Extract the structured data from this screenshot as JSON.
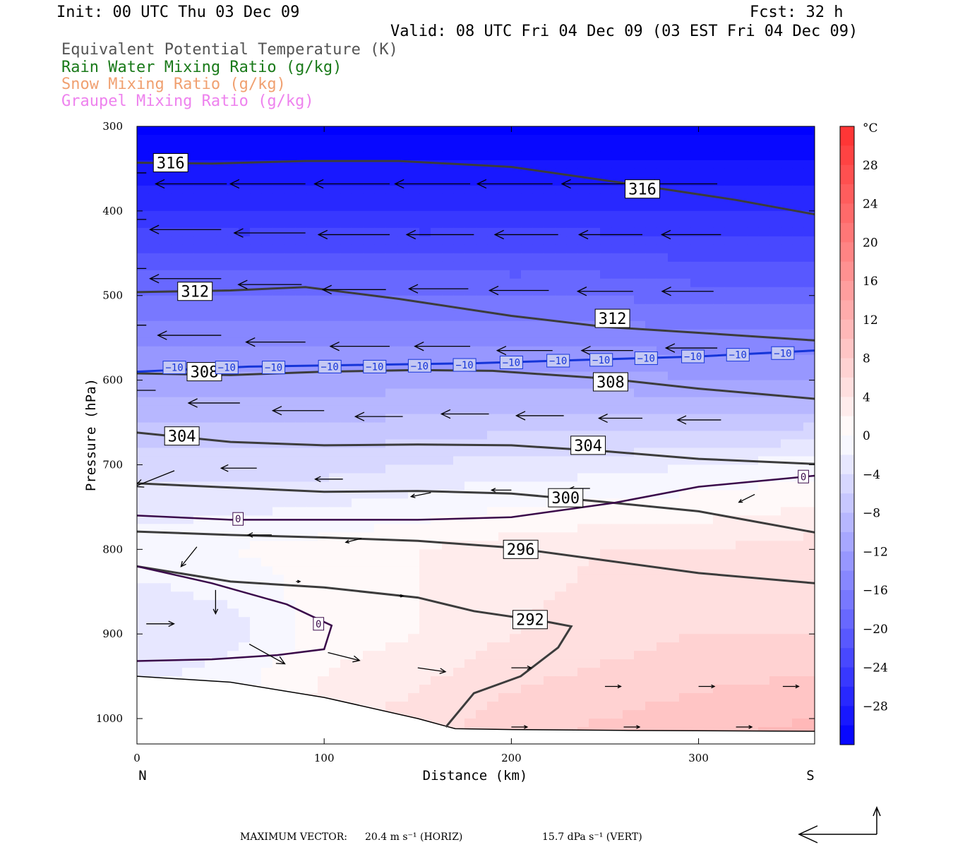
{
  "header": {
    "init": "Init: 00 UTC Thu 03 Dec 09",
    "fcst": "Fcst:   32 h",
    "valid": "Valid: 08 UTC Fri 04 Dec 09 (03 EST Fri 04 Dec 09)"
  },
  "legend": [
    {
      "label": "Equivalent Potential Temperature (K)",
      "color": "#555555"
    },
    {
      "label": "Rain Water Mixing Ratio (g/kg)",
      "color": "#1a7a1a"
    },
    {
      "label": "Snow Mixing Ratio (g/kg)",
      "color": "#f0a070"
    },
    {
      "label": "Graupel Mixing Ratio (g/kg)",
      "color": "#ee82ee"
    }
  ],
  "footer": {
    "prefix": "MAXIMUM VECTOR:",
    "horiz": "20.4 m s⁻¹ (HORIZ)",
    "vert": "15.7 dPa s⁻¹ (VERT)"
  },
  "chart_data": {
    "type": "heatmap",
    "title": "",
    "xlabel": "Distance (km)",
    "ylabel": "Pressure (hPa)",
    "x_ticks": [
      0,
      100,
      200,
      300
    ],
    "y_ticks": [
      300,
      400,
      500,
      600,
      700,
      800,
      900,
      1000
    ],
    "xlim": [
      0,
      362
    ],
    "ylim": [
      300,
      1030
    ],
    "y_inverted": true,
    "end_labels": {
      "left": "N",
      "right": "S"
    },
    "colorbar": {
      "unit": "°C",
      "ticks": [
        28,
        24,
        20,
        16,
        12,
        8,
        4,
        0,
        -4,
        -8,
        -12,
        -16,
        -20,
        -24,
        -28
      ],
      "range": [
        -32,
        32
      ],
      "cold_color": "#0000ff",
      "warm_color": "#ff3030"
    },
    "temperature_field": {
      "x_km": [
        0,
        50,
        100,
        150,
        200,
        250,
        300,
        362
      ],
      "p_hPa": [
        300,
        400,
        500,
        600,
        700,
        800,
        900,
        1000,
        1030
      ],
      "values_C": [
        [
          -33,
          -33,
          -33,
          -33,
          -33,
          -33,
          -33,
          -33
        ],
        [
          -26,
          -26,
          -26,
          -26,
          -26,
          -26,
          -26,
          -26
        ],
        [
          -18,
          -18,
          -18,
          -18,
          -18,
          -18,
          -19,
          -19
        ],
        [
          -11,
          -11,
          -11,
          -11,
          -11,
          -11,
          -12,
          -12
        ],
        [
          -5,
          -5,
          -5,
          -4,
          -3,
          -3,
          -2,
          -1
        ],
        [
          -1,
          0,
          1,
          2,
          3,
          4,
          4,
          5
        ],
        [
          -4,
          -3,
          1,
          2,
          4,
          5,
          6,
          6
        ],
        [
          -1,
          1,
          3,
          5,
          7,
          8,
          9,
          10
        ],
        [
          0,
          1,
          3,
          5,
          7,
          9,
          10,
          11
        ]
      ]
    },
    "theta_e_contours": [
      {
        "level": 316,
        "points": [
          [
            0,
            343
          ],
          [
            40,
            344
          ],
          [
            90,
            341
          ],
          [
            140,
            341
          ],
          [
            200,
            348
          ],
          [
            260,
            367
          ],
          [
            320,
            387
          ],
          [
            362,
            404
          ]
        ]
      },
      {
        "level": 312,
        "points": [
          [
            0,
            496
          ],
          [
            50,
            494
          ],
          [
            90,
            490
          ],
          [
            140,
            504
          ],
          [
            200,
            524
          ],
          [
            250,
            537
          ],
          [
            300,
            544
          ],
          [
            362,
            553
          ]
        ]
      },
      {
        "level": 308,
        "points": [
          [
            0,
            592
          ],
          [
            50,
            594
          ],
          [
            100,
            590
          ],
          [
            150,
            588
          ],
          [
            190,
            589
          ],
          [
            250,
            598
          ],
          [
            300,
            610
          ],
          [
            362,
            622
          ]
        ]
      },
      {
        "level": 304,
        "points": [
          [
            0,
            662
          ],
          [
            50,
            673
          ],
          [
            100,
            677
          ],
          [
            150,
            676
          ],
          [
            200,
            677
          ],
          [
            250,
            684
          ],
          [
            300,
            693
          ],
          [
            362,
            699
          ]
        ]
      },
      {
        "level": 300,
        "points": [
          [
            0,
            722
          ],
          [
            50,
            727
          ],
          [
            100,
            732
          ],
          [
            150,
            731
          ],
          [
            200,
            734
          ],
          [
            250,
            744
          ],
          [
            300,
            755
          ],
          [
            362,
            780
          ]
        ]
      },
      {
        "level": 296,
        "points": [
          [
            0,
            779
          ],
          [
            50,
            783
          ],
          [
            100,
            786
          ],
          [
            150,
            790
          ],
          [
            200,
            798
          ],
          [
            250,
            813
          ],
          [
            300,
            828
          ],
          [
            362,
            840
          ]
        ]
      },
      {
        "level": 292,
        "points": [
          [
            0,
            820
          ],
          [
            50,
            838
          ],
          [
            100,
            845
          ],
          [
            150,
            857
          ],
          [
            180,
            873
          ],
          [
            220,
            886
          ],
          [
            232,
            891
          ],
          [
            225,
            916
          ],
          [
            205,
            950
          ],
          [
            180,
            970
          ],
          [
            165,
            1010
          ]
        ]
      }
    ],
    "zero_isotherms": [
      {
        "points": [
          [
            0,
            760
          ],
          [
            50,
            765
          ],
          [
            100,
            765
          ],
          [
            150,
            765
          ],
          [
            200,
            762
          ],
          [
            255,
            745
          ],
          [
            300,
            726
          ],
          [
            362,
            713
          ]
        ]
      },
      {
        "points": [
          [
            0,
            820
          ],
          [
            40,
            840
          ],
          [
            80,
            865
          ],
          [
            104,
            890
          ],
          [
            100,
            918
          ],
          [
            75,
            925
          ],
          [
            40,
            930
          ],
          [
            0,
            932
          ]
        ]
      }
    ],
    "minus10_isotherm": {
      "points": [
        [
          0,
          590
        ],
        [
          60,
          584
        ],
        [
          120,
          582
        ],
        [
          180,
          580
        ],
        [
          240,
          576
        ],
        [
          300,
          572
        ],
        [
          362,
          565
        ]
      ]
    },
    "terrain": {
      "points": [
        [
          0,
          950
        ],
        [
          50,
          957
        ],
        [
          100,
          975
        ],
        [
          150,
          1000
        ],
        [
          170,
          1012
        ],
        [
          200,
          1013
        ],
        [
          260,
          1014
        ],
        [
          362,
          1015
        ]
      ]
    },
    "contour_labels": [
      {
        "text": "316",
        "x": 18,
        "p": 343
      },
      {
        "text": "316",
        "x": 270,
        "p": 374
      },
      {
        "text": "312",
        "x": 31,
        "p": 495
      },
      {
        "text": "312",
        "x": 254,
        "p": 527
      },
      {
        "text": "308",
        "x": 36,
        "p": 590
      },
      {
        "text": "308",
        "x": 253,
        "p": 602
      },
      {
        "text": "304",
        "x": 24,
        "p": 666
      },
      {
        "text": "304",
        "x": 241,
        "p": 677
      },
      {
        "text": "300",
        "x": 229,
        "p": 739
      },
      {
        "text": "296",
        "x": 205,
        "p": 800
      },
      {
        "text": "292",
        "x": 210,
        "p": 883
      }
    ],
    "isotherm_labels": [
      {
        "text": "0",
        "x": 54,
        "p": 764
      },
      {
        "text": "0",
        "x": 97,
        "p": 888
      },
      {
        "text": "0",
        "x": 356,
        "p": 714
      }
    ],
    "minus10_labels": [
      {
        "text": "−10",
        "x": 20,
        "p": 585
      },
      {
        "text": "−10",
        "x": 48,
        "p": 585
      },
      {
        "text": "−10",
        "x": 73,
        "p": 585
      },
      {
        "text": "−10",
        "x": 103,
        "p": 584
      },
      {
        "text": "−10",
        "x": 127,
        "p": 584
      },
      {
        "text": "−10",
        "x": 151,
        "p": 583
      },
      {
        "text": "−10",
        "x": 175,
        "p": 582
      },
      {
        "text": "−10",
        "x": 200,
        "p": 579
      },
      {
        "text": "−10",
        "x": 225,
        "p": 577
      },
      {
        "text": "−10",
        "x": 248,
        "p": 576
      },
      {
        "text": "−10",
        "x": 272,
        "p": 574
      },
      {
        "text": "−10",
        "x": 297,
        "p": 572
      },
      {
        "text": "−10",
        "x": 321,
        "p": 570
      },
      {
        "text": "−10",
        "x": 345,
        "p": 568
      }
    ],
    "wind_vectors": [
      {
        "x": 5,
        "p": 355,
        "u": -18,
        "w": 0
      },
      {
        "x": 48,
        "p": 368,
        "u": -18,
        "w": 0
      },
      {
        "x": 90,
        "p": 368,
        "u": -19,
        "w": 0
      },
      {
        "x": 135,
        "p": 368,
        "u": -19,
        "w": 0
      },
      {
        "x": 178,
        "p": 368,
        "u": -19,
        "w": 0
      },
      {
        "x": 222,
        "p": 368,
        "u": -19,
        "w": 0
      },
      {
        "x": 265,
        "p": 368,
        "u": -18,
        "w": 0
      },
      {
        "x": 310,
        "p": 368,
        "u": -18,
        "w": 0
      },
      {
        "x": 5,
        "p": 410,
        "u": -18,
        "w": 0
      },
      {
        "x": 45,
        "p": 422,
        "u": -18,
        "w": 0
      },
      {
        "x": 90,
        "p": 426,
        "u": -18,
        "w": 0
      },
      {
        "x": 135,
        "p": 428,
        "u": -18,
        "w": 0
      },
      {
        "x": 180,
        "p": 428,
        "u": -17,
        "w": 0
      },
      {
        "x": 225,
        "p": 428,
        "u": -16,
        "w": 0
      },
      {
        "x": 270,
        "p": 428,
        "u": -16,
        "w": 0
      },
      {
        "x": 312,
        "p": 428,
        "u": -15,
        "w": 0
      },
      {
        "x": 5,
        "p": 468,
        "u": -18,
        "w": 0
      },
      {
        "x": 45,
        "p": 480,
        "u": -18,
        "w": 0
      },
      {
        "x": 88,
        "p": 487,
        "u": -16,
        "w": 0
      },
      {
        "x": 133,
        "p": 493,
        "u": -16,
        "w": 0
      },
      {
        "x": 177,
        "p": 492,
        "u": -15,
        "w": 0
      },
      {
        "x": 220,
        "p": 494,
        "u": -15,
        "w": 0
      },
      {
        "x": 265,
        "p": 495,
        "u": -14,
        "w": 0
      },
      {
        "x": 308,
        "p": 495,
        "u": -13,
        "w": 0
      },
      {
        "x": 5,
        "p": 535,
        "u": -17,
        "w": 0
      },
      {
        "x": 45,
        "p": 547,
        "u": -16,
        "w": 0
      },
      {
        "x": 90,
        "p": 555,
        "u": -15,
        "w": 0
      },
      {
        "x": 135,
        "p": 560,
        "u": -15,
        "w": 0
      },
      {
        "x": 178,
        "p": 560,
        "u": -14,
        "w": 0
      },
      {
        "x": 222,
        "p": 565,
        "u": -14,
        "w": 0
      },
      {
        "x": 265,
        "p": 565,
        "u": -13,
        "w": 0
      },
      {
        "x": 310,
        "p": 562,
        "u": -13,
        "w": 0
      },
      {
        "x": 10,
        "p": 612,
        "u": -15,
        "w": 0
      },
      {
        "x": 55,
        "p": 627,
        "u": -13,
        "w": 0
      },
      {
        "x": 100,
        "p": 636,
        "u": -13,
        "w": 0
      },
      {
        "x": 142,
        "p": 643,
        "u": -12,
        "w": 0
      },
      {
        "x": 188,
        "p": 640,
        "u": -12,
        "w": 0
      },
      {
        "x": 228,
        "p": 642,
        "u": -12,
        "w": 0
      },
      {
        "x": 270,
        "p": 645,
        "u": -11,
        "w": 0
      },
      {
        "x": 312,
        "p": 647,
        "u": -11,
        "w": 0
      },
      {
        "x": 20,
        "p": 707,
        "u": -10,
        "w": 4
      },
      {
        "x": 64,
        "p": 704,
        "u": -9,
        "w": 0
      },
      {
        "x": 110,
        "p": 717,
        "u": -7,
        "w": 0
      },
      {
        "x": 157,
        "p": 733,
        "u": -5,
        "w": 1
      },
      {
        "x": 200,
        "p": 730,
        "u": -5,
        "w": 0
      },
      {
        "x": 242,
        "p": 728,
        "u": -5,
        "w": 0
      },
      {
        "x": 330,
        "p": 735,
        "u": -4,
        "w": 2
      },
      {
        "x": 32,
        "p": 797,
        "u": -4,
        "w": 5
      },
      {
        "x": 72,
        "p": 783,
        "u": -6,
        "w": 0
      },
      {
        "x": 120,
        "p": 787,
        "u": -4,
        "w": 1
      },
      {
        "x": 42,
        "p": 848,
        "u": 0,
        "w": 6
      },
      {
        "x": 85,
        "p": 838,
        "u": 1,
        "w": 0
      },
      {
        "x": 140,
        "p": 855,
        "u": 1,
        "w": 0
      },
      {
        "x": 5,
        "p": 888,
        "u": 7,
        "w": 0
      },
      {
        "x": 60,
        "p": 912,
        "u": 9,
        "w": 5
      },
      {
        "x": 102,
        "p": 922,
        "u": 8,
        "w": 2
      },
      {
        "x": 150,
        "p": 940,
        "u": 7,
        "w": 1
      },
      {
        "x": 200,
        "p": 940,
        "u": 5,
        "w": 0
      },
      {
        "x": 250,
        "p": 962,
        "u": 4,
        "w": 0
      },
      {
        "x": 300,
        "p": 962,
        "u": 4,
        "w": 0
      },
      {
        "x": 345,
        "p": 962,
        "u": 4,
        "w": 0
      },
      {
        "x": 200,
        "p": 1010,
        "u": 4,
        "w": 0
      },
      {
        "x": 260,
        "p": 1010,
        "u": 4,
        "w": 0
      },
      {
        "x": 320,
        "p": 1010,
        "u": 4,
        "w": 0
      }
    ]
  }
}
